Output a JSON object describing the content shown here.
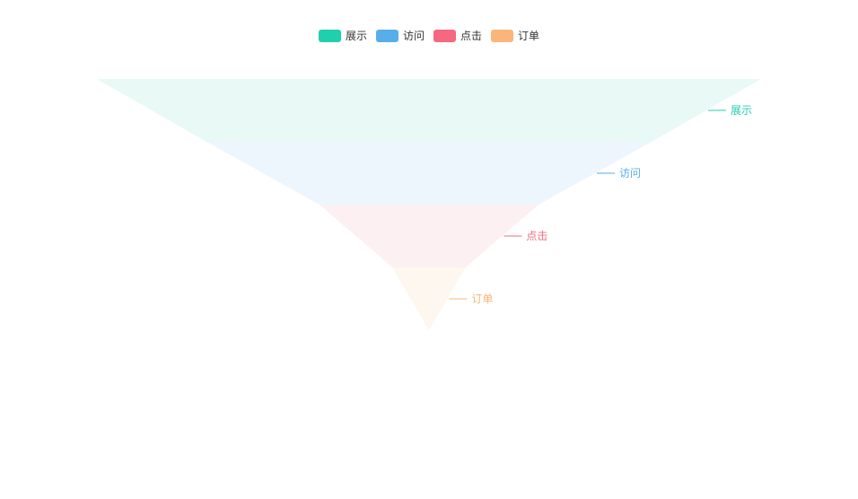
{
  "chart_data": {
    "type": "funnel",
    "sort": "descending",
    "legend_position": "top-center",
    "label_position": "right",
    "series": [
      {
        "name": "展示",
        "color": "#1fcfae",
        "fill": "#e9f9f5",
        "value": 100
      },
      {
        "name": "访问",
        "color": "#57aeea",
        "fill": "#eef6fd",
        "value": 67
      },
      {
        "name": "点击",
        "color": "#f5687f",
        "fill": "#fdf0f2",
        "value": 33
      },
      {
        "name": "订单",
        "color": "#fbb57a",
        "fill": "#fdf7ef",
        "value": 11
      }
    ]
  }
}
